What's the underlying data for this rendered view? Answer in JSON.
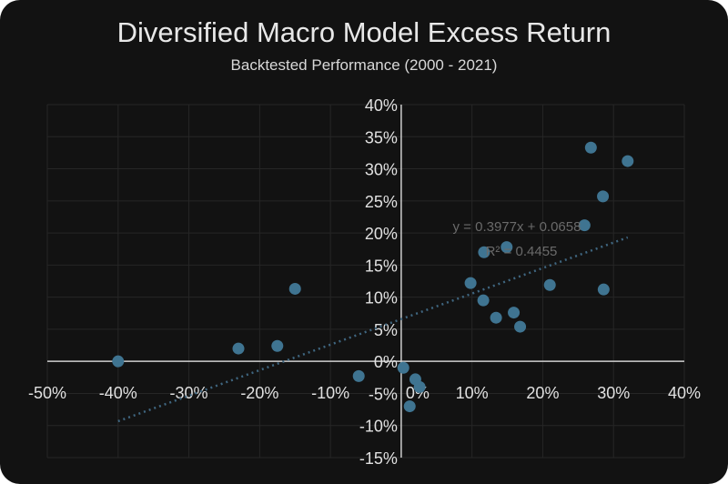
{
  "chart_data": {
    "type": "scatter",
    "title": "Diversified Macro Model Excess Return",
    "subtitle": "Backtested Performance (2000 - 2021)",
    "xlim": [
      -50,
      40
    ],
    "ylim": [
      -15,
      40
    ],
    "x_ticks": [
      "-50%",
      "-40%",
      "-30%",
      "-20%",
      "-10%",
      "0%",
      "10%",
      "20%",
      "30%",
      "40%"
    ],
    "y_ticks": [
      "40%",
      "35%",
      "30%",
      "25%",
      "20%",
      "15%",
      "10%",
      "5%",
      "0%",
      "-5%",
      "-10%",
      "-15%"
    ],
    "grid": true,
    "point_color": "#3f7491",
    "points": [
      [
        -40,
        0
      ],
      [
        -23,
        2
      ],
      [
        -17.5,
        2.4
      ],
      [
        -15,
        11.3
      ],
      [
        -6,
        -2.3
      ],
      [
        0.3,
        -1
      ],
      [
        2,
        -2.8
      ],
      [
        2.6,
        -4
      ],
      [
        1.2,
        -7
      ],
      [
        9.8,
        12.2
      ],
      [
        11.7,
        17
      ],
      [
        11.6,
        9.5
      ],
      [
        13.4,
        6.8
      ],
      [
        14.9,
        17.8
      ],
      [
        15.9,
        7.6
      ],
      [
        16.8,
        5.4
      ],
      [
        21,
        11.9
      ],
      [
        25.9,
        21.2
      ],
      [
        26.8,
        33.3
      ],
      [
        28.5,
        25.7
      ],
      [
        28.6,
        11.2
      ],
      [
        32,
        31.2
      ]
    ],
    "trendline": {
      "slope": 0.3977,
      "intercept": 0.0658,
      "x_range": [
        -40,
        32
      ],
      "equation": "y = 0.3977x + 0.0658",
      "r_squared": "R² = 0.4455"
    }
  }
}
